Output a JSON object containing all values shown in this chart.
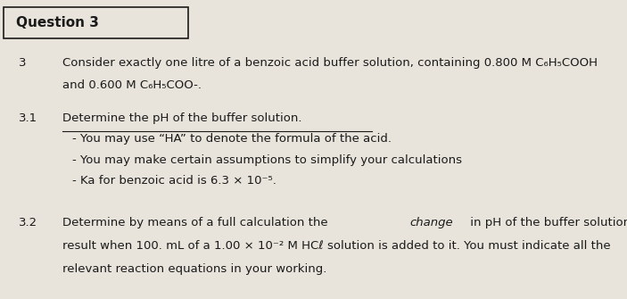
{
  "background_color": "#e8e4db",
  "title": "Question 3",
  "title_fontsize": 11,
  "body_fontsize": 9.5,
  "text_color": "#1a1a1a",
  "q3_number": "3",
  "q3_text_line1": "Consider exactly one litre of a benzoic acid buffer solution, containing 0.800 M C₆H₅COOH",
  "q3_text_line2": "and 0.600 M C₆H₅COO-.",
  "q31_number": "3.1",
  "q31_text": "Determine the pH of the buffer solution.",
  "q31_bullet1": "- You may use “HA” to denote the formula of the acid.",
  "q31_bullet2": "- You may make certain assumptions to simplify your calculations",
  "q31_bullet3": "- Ka for benzoic acid is 6.3 × 10⁻⁵.",
  "q32_number": "3.2",
  "q32_text_before_italic": "Determine by means of a full calculation the ",
  "q32_text_italic": "change",
  "q32_text_after_italic": " in pH of the buffer solution that will",
  "q32_text_line2": "result when 100. mL of a 1.00 × 10⁻² M HCℓ solution is added to it. You must indicate all the",
  "q32_text_line3": "relevant reaction equations in your working."
}
